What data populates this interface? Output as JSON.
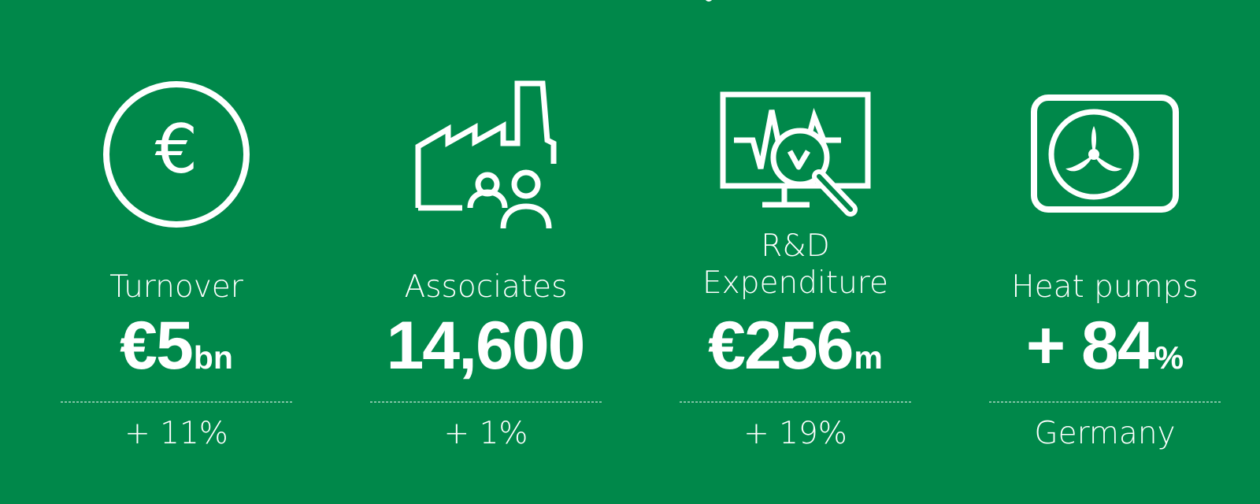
{
  "stats": [
    {
      "icon": "euro-coin-icon",
      "label": "Turnover",
      "value": "€5",
      "unit": "bn",
      "change": "+ 11%"
    },
    {
      "icon": "factory-people-icon",
      "label": "Associates",
      "value": "14,600",
      "unit": "",
      "change": "+ 1%"
    },
    {
      "icon": "monitor-magnifier-icon",
      "label_line1": "R&D",
      "label_line2": "Expenditure",
      "value": "€256",
      "unit": "m",
      "change": "+ 19%"
    },
    {
      "icon": "heat-pump-icon",
      "label": "Heat pumps",
      "value": "+ 84",
      "unit": "%",
      "change": "Germany"
    }
  ],
  "colors": {
    "background": "#00884a",
    "foreground": "#ffffff"
  }
}
